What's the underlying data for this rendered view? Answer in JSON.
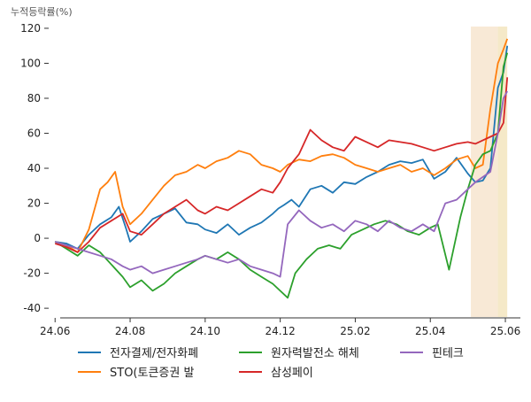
{
  "chart_data": {
    "type": "line",
    "ylabel": "누적등락률(%)",
    "ylim": [
      -45,
      122
    ],
    "yticks": [
      -40,
      -20,
      0,
      20,
      40,
      60,
      80,
      100,
      120
    ],
    "x_range": [
      -0.1,
      12.4
    ],
    "xticks": [
      {
        "label": "24.06",
        "pos": 0
      },
      {
        "label": "24.08",
        "pos": 2
      },
      {
        "label": "24.10",
        "pos": 4
      },
      {
        "label": "24.12",
        "pos": 6
      },
      {
        "label": "25.02",
        "pos": 8
      },
      {
        "label": "25.04",
        "pos": 10
      },
      {
        "label": "25.06",
        "pos": 12
      }
    ],
    "highlight_bands": [
      {
        "from": 11.08,
        "to": 11.8,
        "color": "#f8e9d6"
      },
      {
        "from": 11.8,
        "to": 12.05,
        "color": "#f5e9c8"
      }
    ],
    "series": [
      {
        "name": "전자결제/전자화폐",
        "color": "#1f77b4",
        "x": [
          0,
          0.3,
          0.6,
          0.9,
          1.2,
          1.5,
          1.7,
          1.9,
          2.0,
          2.3,
          2.6,
          2.9,
          3.2,
          3.5,
          3.8,
          4.0,
          4.3,
          4.6,
          4.9,
          5.2,
          5.5,
          5.8,
          5.95,
          6.1,
          6.3,
          6.5,
          6.8,
          7.1,
          7.4,
          7.7,
          8.0,
          8.3,
          8.6,
          8.9,
          9.2,
          9.5,
          9.8,
          10.1,
          10.4,
          10.7,
          11.0,
          11.2,
          11.4,
          11.6,
          11.8,
          11.95,
          12.05
        ],
        "values": [
          -2,
          -3,
          -6,
          2,
          8,
          12,
          18,
          5,
          -2,
          4,
          11,
          14,
          17,
          9,
          8,
          5,
          3,
          8,
          2,
          6,
          9,
          14,
          17,
          19,
          22,
          18,
          28,
          30,
          26,
          32,
          31,
          35,
          38,
          42,
          44,
          43,
          45,
          34,
          38,
          46,
          37,
          32,
          33,
          40,
          86,
          95,
          110
        ]
      },
      {
        "name": "STO(토큰증권 발",
        "color": "#ff7f0e",
        "x": [
          0,
          0.3,
          0.6,
          0.9,
          1.2,
          1.4,
          1.6,
          1.8,
          2.0,
          2.3,
          2.6,
          2.9,
          3.2,
          3.5,
          3.8,
          4.0,
          4.3,
          4.6,
          4.9,
          5.2,
          5.5,
          5.8,
          6.0,
          6.2,
          6.5,
          6.8,
          7.1,
          7.4,
          7.7,
          8.0,
          8.3,
          8.6,
          8.9,
          9.2,
          9.5,
          9.8,
          10.1,
          10.4,
          10.7,
          11.0,
          11.2,
          11.4,
          11.6,
          11.8,
          11.95,
          12.05
        ],
        "values": [
          -2,
          -4,
          -8,
          5,
          28,
          32,
          38,
          18,
          8,
          14,
          22,
          30,
          36,
          38,
          42,
          40,
          44,
          46,
          50,
          48,
          42,
          40,
          38,
          42,
          45,
          44,
          47,
          48,
          46,
          42,
          40,
          38,
          40,
          42,
          38,
          40,
          36,
          40,
          45,
          47,
          40,
          42,
          74,
          100,
          108,
          114
        ]
      },
      {
        "name": "원자력발전소 해체",
        "color": "#2ca02c",
        "x": [
          0,
          0.3,
          0.6,
          0.9,
          1.2,
          1.5,
          1.8,
          2.0,
          2.3,
          2.6,
          2.9,
          3.2,
          3.5,
          3.8,
          4.0,
          4.3,
          4.6,
          4.9,
          5.2,
          5.5,
          5.8,
          6.0,
          6.2,
          6.4,
          6.7,
          7.0,
          7.3,
          7.6,
          7.9,
          8.2,
          8.5,
          8.8,
          9.1,
          9.4,
          9.7,
          10.0,
          10.2,
          10.5,
          10.8,
          11.0,
          11.2,
          11.4,
          11.6,
          11.8,
          11.95,
          12.05
        ],
        "values": [
          -2,
          -6,
          -10,
          -4,
          -8,
          -15,
          -22,
          -28,
          -24,
          -30,
          -26,
          -20,
          -16,
          -12,
          -10,
          -12,
          -8,
          -12,
          -18,
          -22,
          -26,
          -30,
          -34,
          -20,
          -12,
          -6,
          -4,
          -6,
          2,
          5,
          8,
          10,
          8,
          4,
          2,
          6,
          8,
          -18,
          12,
          28,
          42,
          48,
          50,
          60,
          98,
          106
        ]
      },
      {
        "name": "삼성페이",
        "color": "#d62728",
        "x": [
          0,
          0.3,
          0.6,
          0.9,
          1.2,
          1.5,
          1.8,
          2.0,
          2.3,
          2.6,
          2.9,
          3.2,
          3.5,
          3.8,
          4.0,
          4.3,
          4.6,
          4.9,
          5.2,
          5.5,
          5.8,
          6.0,
          6.2,
          6.5,
          6.8,
          7.1,
          7.4,
          7.7,
          8.0,
          8.3,
          8.6,
          8.9,
          9.2,
          9.5,
          9.8,
          10.1,
          10.4,
          10.7,
          11.0,
          11.2,
          11.4,
          11.6,
          11.8,
          11.95,
          12.05
        ],
        "values": [
          -3,
          -5,
          -8,
          -2,
          6,
          10,
          14,
          4,
          2,
          8,
          14,
          18,
          22,
          16,
          14,
          18,
          16,
          20,
          24,
          28,
          26,
          32,
          40,
          48,
          62,
          56,
          52,
          50,
          58,
          55,
          52,
          56,
          55,
          54,
          52,
          50,
          52,
          54,
          55,
          54,
          56,
          58,
          60,
          66,
          92
        ]
      },
      {
        "name": "핀테크",
        "color": "#9467bd",
        "x": [
          0,
          0.3,
          0.6,
          0.9,
          1.2,
          1.5,
          1.8,
          2.0,
          2.3,
          2.6,
          2.9,
          3.2,
          3.5,
          3.8,
          4.0,
          4.3,
          4.6,
          4.9,
          5.2,
          5.5,
          5.8,
          6.0,
          6.2,
          6.5,
          6.8,
          7.1,
          7.4,
          7.7,
          8.0,
          8.3,
          8.6,
          8.9,
          9.2,
          9.5,
          9.8,
          10.1,
          10.4,
          10.7,
          11.0,
          11.2,
          11.4,
          11.6,
          11.8,
          11.95,
          12.05
        ],
        "values": [
          -2,
          -4,
          -6,
          -8,
          -10,
          -12,
          -16,
          -18,
          -16,
          -20,
          -18,
          -16,
          -14,
          -12,
          -10,
          -12,
          -14,
          -12,
          -16,
          -18,
          -20,
          -22,
          8,
          16,
          10,
          6,
          8,
          4,
          10,
          8,
          4,
          10,
          6,
          4,
          8,
          4,
          20,
          22,
          28,
          32,
          35,
          38,
          60,
          80,
          84
        ]
      }
    ]
  }
}
